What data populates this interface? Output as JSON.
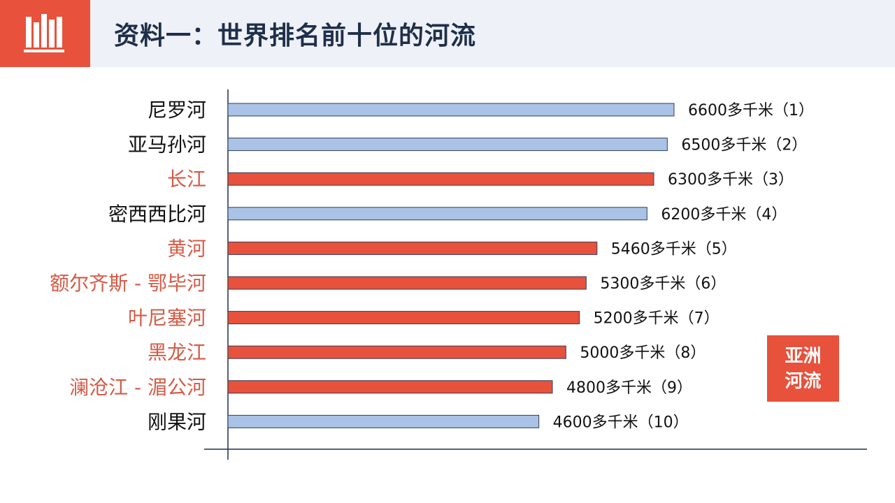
{
  "header": {
    "title": "资料一：世界排名前十位的河流"
  },
  "badge": {
    "label": "亚洲河流"
  },
  "colors": {
    "asia": "#e8513b",
    "other": "#a9c2e5",
    "label_asia": "#d45a45",
    "label_other": "#111111"
  },
  "chart_data": {
    "type": "bar",
    "orientation": "horizontal",
    "title": "",
    "xlabel": "",
    "ylabel": "",
    "xlim": [
      0,
      6600
    ],
    "grid": false,
    "categories": [
      "尼罗河",
      "亚马孙河",
      "长江",
      "密西西比河",
      "黄河",
      "额尔齐斯 - 鄂毕河",
      "叶尼塞河",
      "黑龙江",
      "澜沧江 - 湄公河",
      "刚果河"
    ],
    "values": [
      6600,
      6500,
      6300,
      6200,
      5460,
      5300,
      5200,
      5000,
      4800,
      4600
    ],
    "data_labels": [
      "6600多千米（1）",
      "6500多千米（2）",
      "6300多千米（3）",
      "6200多千米（4）",
      "5460多千米（5）",
      "5300多千米（6）",
      "5200多千米（7）",
      "5000多千米（8）",
      "4800多千米（9）",
      "4600多千米（10）"
    ],
    "asian": [
      false,
      false,
      true,
      false,
      true,
      true,
      true,
      true,
      true,
      false
    ]
  }
}
